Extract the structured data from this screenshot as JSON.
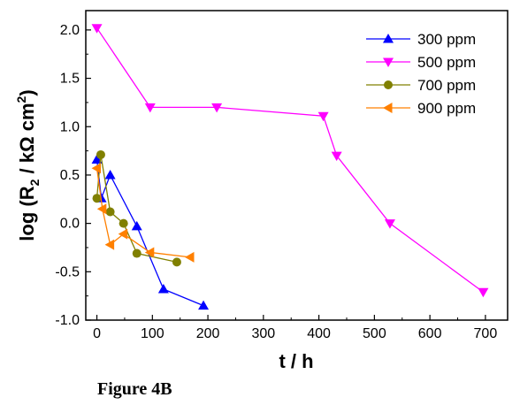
{
  "chart_data": {
    "type": "line",
    "xlabel": "t / h",
    "ylabel_main": "log (R",
    "ylabel_sub": "2",
    "ylabel_rest": " / kΩ cm",
    "ylabel_sup": "2",
    "ylabel_end": ")",
    "xlim": [
      -20,
      740
    ],
    "ylim": [
      -1.0,
      2.2
    ],
    "xticks": [
      "0",
      "100",
      "200",
      "300",
      "400",
      "500",
      "600",
      "700"
    ],
    "yticks": [
      "-1.0",
      "-0.5",
      "0.0",
      "0.5",
      "1.0",
      "1.5",
      "2.0"
    ],
    "legend_position": "top-right",
    "series": [
      {
        "name": "300 ppm",
        "color": "#0000ff",
        "marker": "triangle-up",
        "x": [
          0,
          8,
          24,
          72,
          120,
          192
        ],
        "y": [
          0.66,
          0.26,
          0.5,
          -0.03,
          -0.68,
          -0.85
        ]
      },
      {
        "name": "500 ppm",
        "color": "#ff00ff",
        "marker": "triangle-down",
        "x": [
          0,
          96,
          216,
          408,
          432,
          528,
          696
        ],
        "y": [
          2.02,
          1.2,
          1.2,
          1.11,
          0.7,
          0.0,
          -0.71
        ]
      },
      {
        "name": "700 ppm",
        "color": "#808000",
        "marker": "circle",
        "x": [
          0,
          7,
          24,
          48,
          72,
          144
        ],
        "y": [
          0.26,
          0.71,
          0.12,
          0.0,
          -0.31,
          -0.4
        ]
      },
      {
        "name": "900 ppm",
        "color": "#ff8000",
        "marker": "triangle-left",
        "x": [
          0,
          10,
          24,
          48,
          96,
          168
        ],
        "y": [
          0.57,
          0.15,
          -0.22,
          -0.11,
          -0.3,
          -0.35
        ]
      }
    ]
  },
  "caption": "Figure 4B"
}
